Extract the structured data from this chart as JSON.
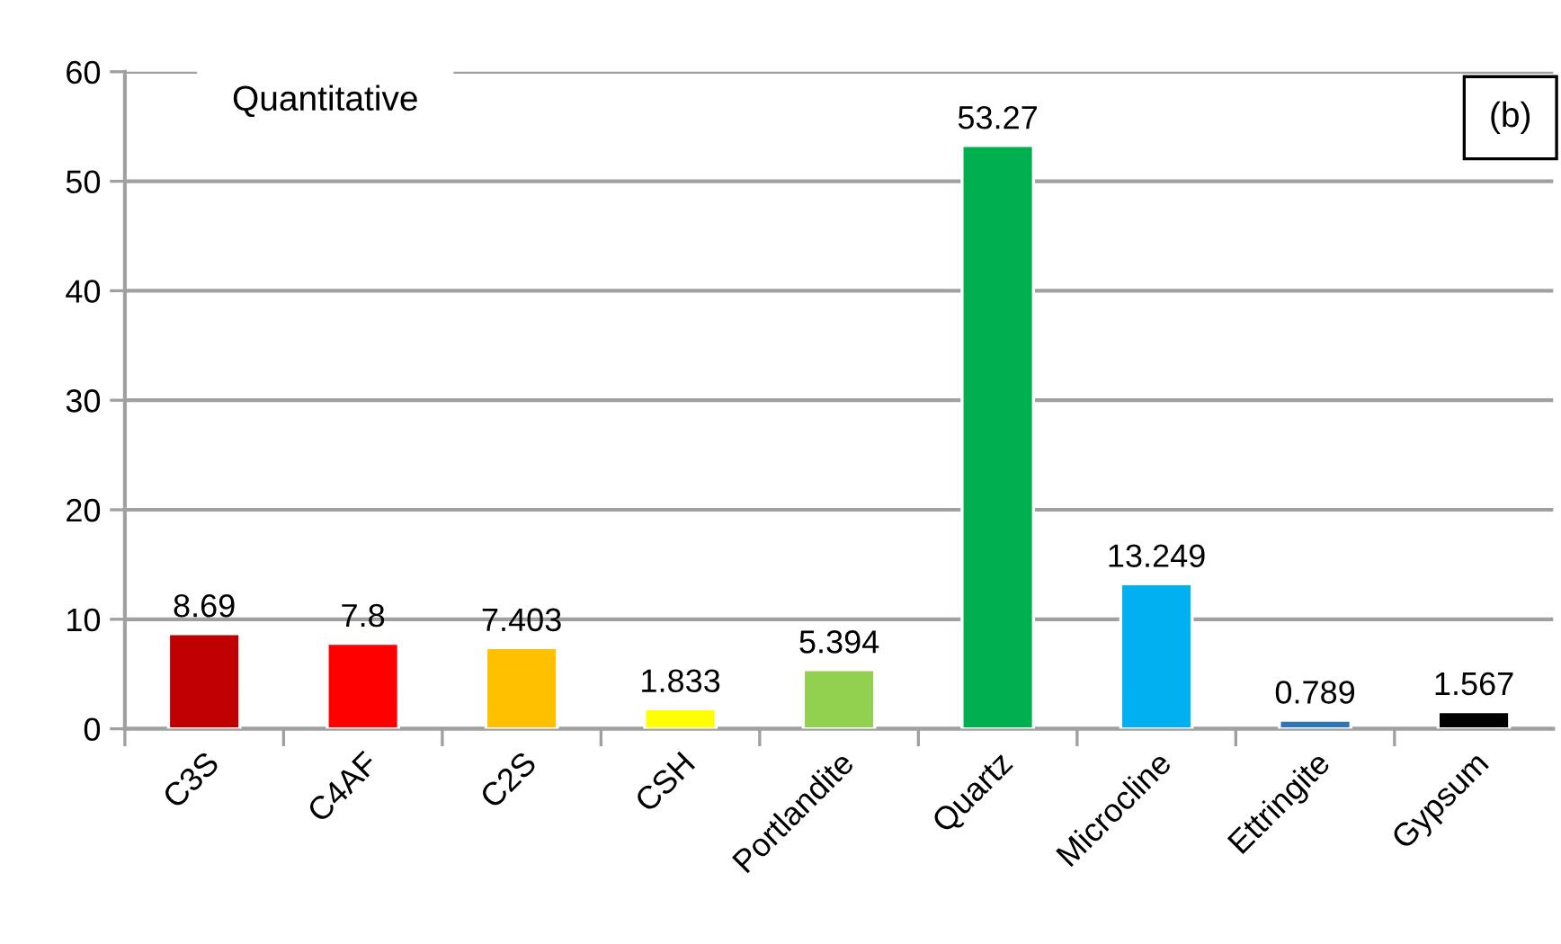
{
  "chart_data": {
    "type": "bar",
    "categories": [
      "C3S",
      "C4AF",
      "C2S",
      "CSH",
      "Portlandite",
      "Quartz",
      "Microcline",
      "Ettringite",
      "Gypsum"
    ],
    "values": [
      8.69,
      7.8,
      7.403,
      1.833,
      5.394,
      53.27,
      13.249,
      0.789,
      1.567
    ],
    "colors": [
      "#c00000",
      "#ff0000",
      "#ffc000",
      "#ffff00",
      "#92d050",
      "#00b050",
      "#00b0f0",
      "#2e75b6",
      "#000000"
    ],
    "ylim": [
      0,
      60
    ],
    "yticks": [
      0,
      10,
      20,
      30,
      40,
      50,
      60
    ],
    "grid": "y",
    "data_labels": true,
    "annotations": [
      "Quantitative",
      "(b)"
    ]
  }
}
